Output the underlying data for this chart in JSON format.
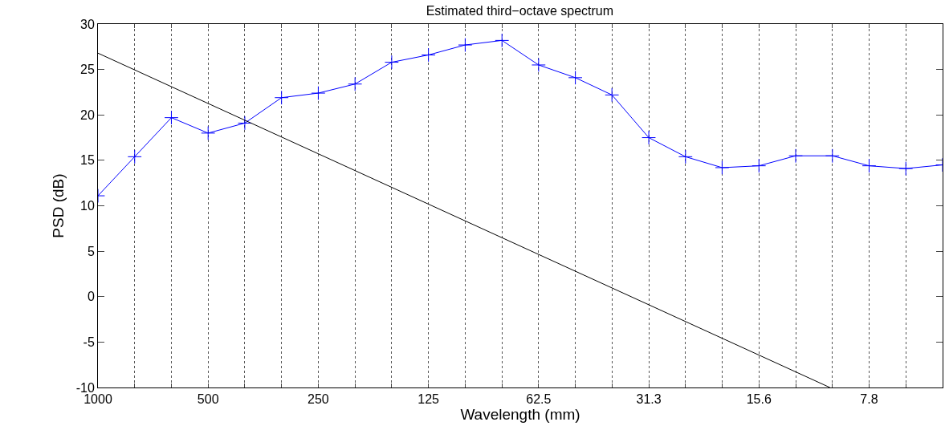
{
  "chart_data": {
    "type": "line",
    "title": "Estimated third−octave spectrum",
    "xlabel": "Wavelength (mm)",
    "ylabel": "PSD (dB)",
    "log": "x",
    "grid": "x",
    "marker": "cross",
    "line_style": "solid",
    "xlim": [
      1000,
      4.92
    ],
    "ylim": [
      -10,
      30
    ],
    "xticks": [
      1000,
      {
        "value": 793.7,
        "label": null
      },
      {
        "value": 630,
        "label": null
      },
      500,
      {
        "value": 396.9,
        "label": null
      },
      {
        "value": 315,
        "label": null
      },
      250,
      {
        "value": 198.4,
        "label": null
      },
      {
        "value": 157.5,
        "label": null
      },
      125,
      {
        "value": 99.2,
        "label": null
      },
      {
        "value": 78.7,
        "label": null
      },
      62.5,
      {
        "value": 49.6,
        "label": null
      },
      {
        "value": 39.4,
        "label": null
      },
      {
        "value": 31.25,
        "label": "31.3"
      },
      {
        "value": 24.8,
        "label": null
      },
      {
        "value": 19.7,
        "label": null
      },
      {
        "value": 15.625,
        "label": "15.6"
      },
      {
        "value": 12.4,
        "label": null
      },
      {
        "value": 9.84,
        "label": null
      },
      {
        "value": 7.8125,
        "label": "7.8"
      },
      {
        "value": 6.2,
        "label": null
      }
    ],
    "yticks": [
      -10,
      -5,
      0,
      5,
      10,
      15,
      20,
      25,
      30
    ],
    "series": [
      {
        "color": "#0000ff",
        "x": [
          1000,
          793.7,
          630,
          500,
          396.9,
          315,
          250,
          198.4,
          157.5,
          125,
          99.2,
          78.7,
          62.5,
          49.6,
          39.4,
          31.25,
          24.8,
          19.7,
          15.625,
          12.4,
          9.84,
          7.8125,
          6.2,
          4.92
        ],
        "values": [
          11.1,
          15.4,
          19.7,
          18.0,
          19.1,
          21.9,
          22.4,
          23.4,
          25.8,
          26.6,
          27.7,
          28.2,
          25.5,
          24.1,
          22.2,
          17.5,
          15.4,
          14.2,
          14.4,
          15.5,
          15.5,
          14.4,
          14.1,
          14.5
        ]
      },
      {
        "color": "#000000",
        "marker": "none",
        "x": [
          1000,
          10
        ],
        "values": [
          26.8,
          -10
        ]
      }
    ]
  }
}
